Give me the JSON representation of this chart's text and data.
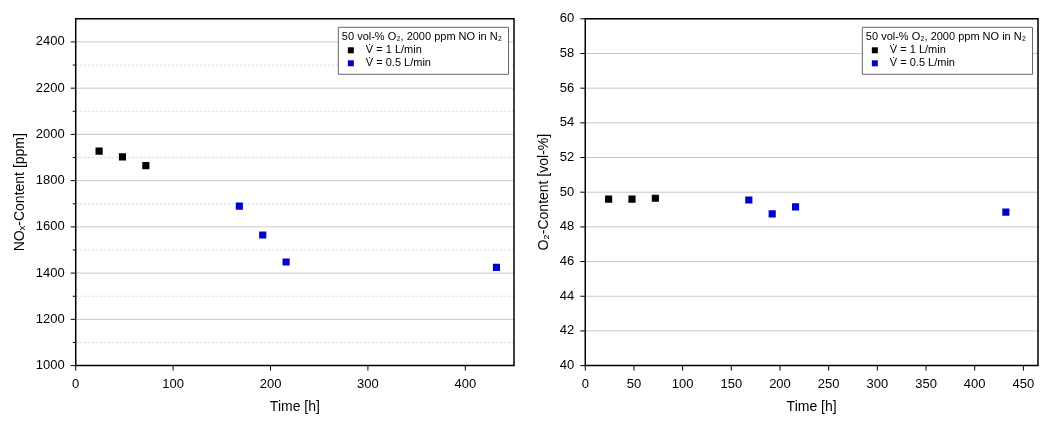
{
  "chart_data": [
    {
      "type": "scatter",
      "xlabel": "Time [h]",
      "ylabel": "NOₓ-Content [ppm]",
      "legend_title": "50 vol-% O₂, 2000 ppm NO in N₂",
      "legend": "top right",
      "grid": "y",
      "marker": "square",
      "xlim": [
        0,
        450
      ],
      "xticks": [
        0,
        100,
        200,
        300,
        400
      ],
      "ylim": [
        1000,
        2500
      ],
      "yticks": [
        1000,
        {
          "value": 1100,
          "label": null
        },
        1200,
        {
          "value": 1300,
          "label": null
        },
        1400,
        {
          "value": 1500,
          "label": null
        },
        1600,
        {
          "value": 1700,
          "label": null
        },
        1800,
        {
          "value": 1900,
          "label": null
        },
        2000,
        {
          "value": 2100,
          "label": null
        },
        2200,
        {
          "value": 2300,
          "label": null
        },
        2400
      ],
      "series": [
        {
          "name": "V̇ = 1 L/min",
          "color": "#000000",
          "x": [
            24,
            48,
            72
          ],
          "values": [
            1928,
            1903,
            1865
          ]
        },
        {
          "name": "V̇ = 0.5 L/min",
          "color": "#0000cc",
          "x": [
            168,
            192,
            216,
            432
          ],
          "values": [
            1690,
            1565,
            1448,
            1425
          ]
        }
      ]
    },
    {
      "type": "scatter",
      "xlabel": "Time [h]",
      "ylabel": "O₂-Content [vol-%]",
      "legend_title": "50 vol-% O₂, 2000 ppm NO in N₂",
      "legend": "top right",
      "grid": "y",
      "marker": "square",
      "xlim": [
        0,
        465
      ],
      "xticks": [
        0,
        50,
        100,
        150,
        200,
        250,
        300,
        350,
        400,
        450
      ],
      "ylim": [
        40,
        60
      ],
      "yticks": [
        40,
        42,
        44,
        46,
        48,
        50,
        52,
        54,
        56,
        58,
        60
      ],
      "series": [
        {
          "name": "V̇ = 1 L/min",
          "color": "#000000",
          "x": [
            24,
            48,
            72
          ],
          "values": [
            49.6,
            49.6,
            49.65
          ]
        },
        {
          "name": "V̇ = 0.5 L/min",
          "color": "#0000cc",
          "x": [
            168,
            192,
            216,
            432
          ],
          "values": [
            49.55,
            48.75,
            49.15,
            48.85
          ]
        }
      ]
    }
  ]
}
